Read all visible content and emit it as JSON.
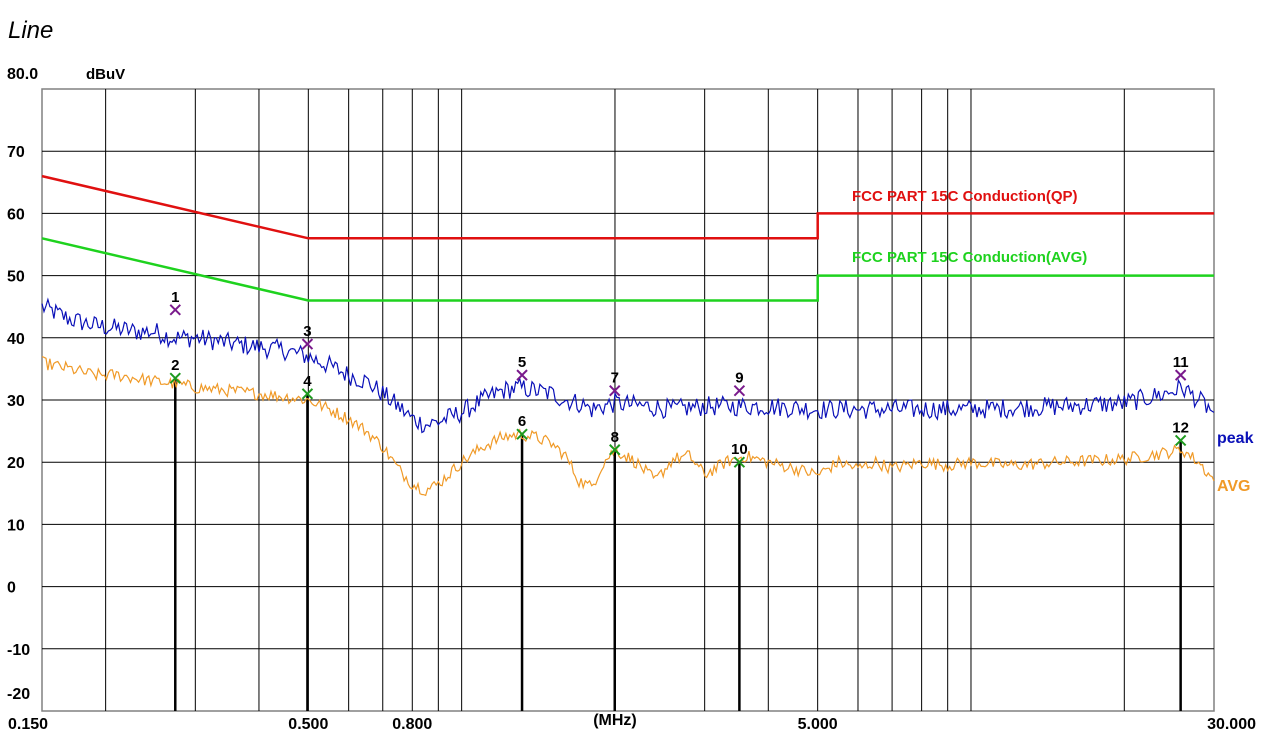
{
  "chart_data": {
    "type": "line",
    "title": "Line",
    "ylabel": "dBuV",
    "xlabel": "(MHz)",
    "x_scale": "log",
    "xlim": [
      0.15,
      30
    ],
    "ylim": [
      -20,
      80
    ],
    "grid": true,
    "y_ticks": [
      {
        "value": 80,
        "label": "80.0"
      },
      {
        "value": 70,
        "label": "70"
      },
      {
        "value": 60,
        "label": "60"
      },
      {
        "value": 50,
        "label": "50"
      },
      {
        "value": 40,
        "label": "40"
      },
      {
        "value": 30,
        "label": "30"
      },
      {
        "value": 20,
        "label": "20"
      },
      {
        "value": 10,
        "label": "10"
      },
      {
        "value": 0,
        "label": "0"
      },
      {
        "value": -10,
        "label": "-10"
      },
      {
        "value": -20,
        "label": "-20"
      }
    ],
    "x_ticks": [
      {
        "value": 0.15,
        "label": "0.150"
      },
      {
        "value": 0.5,
        "label": "0.500"
      },
      {
        "value": 0.8,
        "label": "0.800"
      },
      {
        "value": 2.0,
        "label": "(MHz)"
      },
      {
        "value": 5.0,
        "label": "5.000"
      },
      {
        "value": 30,
        "label": "30.000"
      }
    ],
    "x_gridlines": [
      0.2,
      0.3,
      0.4,
      0.5,
      0.6,
      0.7,
      0.8,
      0.9,
      1,
      2,
      3,
      4,
      5,
      6,
      7,
      8,
      9,
      10,
      20,
      30
    ],
    "limits": [
      {
        "name": "FCC PART 15C  Conduction(QP)",
        "color": "#e01010",
        "points": [
          [
            0.15,
            66
          ],
          [
            0.5,
            56
          ],
          [
            5,
            56
          ],
          [
            5,
            60
          ],
          [
            30,
            60
          ]
        ]
      },
      {
        "name": "FCC PART 15C Conduction(AVG)",
        "color": "#1ed21e",
        "points": [
          [
            0.15,
            56
          ],
          [
            0.5,
            46
          ],
          [
            5,
            46
          ],
          [
            5,
            50
          ],
          [
            30,
            50
          ]
        ]
      }
    ],
    "series": [
      {
        "name": "peak",
        "color": "#0a10b8",
        "points": [
          [
            0.15,
            45
          ],
          [
            0.17,
            43
          ],
          [
            0.19,
            42
          ],
          [
            0.21,
            41.5
          ],
          [
            0.23,
            41
          ],
          [
            0.25,
            41
          ],
          [
            0.27,
            40
          ],
          [
            0.3,
            40
          ],
          [
            0.33,
            39.5
          ],
          [
            0.36,
            39
          ],
          [
            0.4,
            38.5
          ],
          [
            0.45,
            38
          ],
          [
            0.5,
            37
          ],
          [
            0.55,
            35.5
          ],
          [
            0.6,
            34
          ],
          [
            0.65,
            33
          ],
          [
            0.7,
            31
          ],
          [
            0.75,
            29
          ],
          [
            0.8,
            27
          ],
          [
            0.85,
            26
          ],
          [
            0.9,
            26.5
          ],
          [
            1.0,
            28
          ],
          [
            1.1,
            30
          ],
          [
            1.2,
            31.5
          ],
          [
            1.3,
            32
          ],
          [
            1.4,
            31.5
          ],
          [
            1.5,
            31
          ],
          [
            1.6,
            30
          ],
          [
            1.7,
            29.5
          ],
          [
            1.8,
            28.5
          ],
          [
            2.0,
            29.5
          ],
          [
            2.3,
            29
          ],
          [
            2.6,
            28.5
          ],
          [
            3.0,
            29
          ],
          [
            3.5,
            29
          ],
          [
            4.0,
            29
          ],
          [
            5.0,
            28.5
          ],
          [
            6.0,
            28.5
          ],
          [
            8.0,
            28.5
          ],
          [
            10,
            28.5
          ],
          [
            15,
            29
          ],
          [
            20,
            29.5
          ],
          [
            24,
            31
          ],
          [
            26,
            32
          ],
          [
            28,
            30
          ],
          [
            30,
            28
          ]
        ]
      },
      {
        "name": "AVG",
        "color": "#f09a28",
        "points": [
          [
            0.15,
            36
          ],
          [
            0.17,
            35
          ],
          [
            0.19,
            34
          ],
          [
            0.21,
            34
          ],
          [
            0.23,
            33.5
          ],
          [
            0.25,
            33
          ],
          [
            0.28,
            32.5
          ],
          [
            0.3,
            32
          ],
          [
            0.35,
            31.5
          ],
          [
            0.4,
            31
          ],
          [
            0.45,
            30.5
          ],
          [
            0.5,
            30
          ],
          [
            0.55,
            28.5
          ],
          [
            0.6,
            27
          ],
          [
            0.65,
            25
          ],
          [
            0.7,
            22.5
          ],
          [
            0.75,
            19
          ],
          [
            0.8,
            16.5
          ],
          [
            0.85,
            15.5
          ],
          [
            0.9,
            16.5
          ],
          [
            1.0,
            20
          ],
          [
            1.1,
            22.5
          ],
          [
            1.2,
            24
          ],
          [
            1.3,
            24.5
          ],
          [
            1.4,
            24
          ],
          [
            1.5,
            23
          ],
          [
            1.6,
            21
          ],
          [
            1.7,
            17
          ],
          [
            1.8,
            16
          ],
          [
            1.9,
            20
          ],
          [
            2.0,
            22
          ],
          [
            2.2,
            20
          ],
          [
            2.4,
            17
          ],
          [
            2.6,
            20.5
          ],
          [
            2.8,
            21
          ],
          [
            3.0,
            18
          ],
          [
            3.3,
            20
          ],
          [
            3.6,
            21
          ],
          [
            4.0,
            20
          ],
          [
            4.5,
            19
          ],
          [
            5.0,
            18
          ],
          [
            5.5,
            20
          ],
          [
            6.0,
            19
          ],
          [
            6.5,
            20
          ],
          [
            7.0,
            19
          ],
          [
            8.0,
            20
          ],
          [
            9.0,
            19.5
          ],
          [
            10,
            20
          ],
          [
            12,
            19.5
          ],
          [
            15,
            20
          ],
          [
            20,
            20.5
          ],
          [
            24,
            21.5
          ],
          [
            26,
            22
          ],
          [
            28,
            20
          ],
          [
            30,
            17
          ]
        ]
      }
    ],
    "markers": [
      {
        "label": "1",
        "x": 0.274,
        "y": 44.5,
        "color": "#7a1a8c"
      },
      {
        "label": "2",
        "x": 0.274,
        "y": 33.5,
        "color": "#1e9a1e"
      },
      {
        "label": "3",
        "x": 0.498,
        "y": 39.0,
        "color": "#7a1a8c"
      },
      {
        "label": "4",
        "x": 0.498,
        "y": 31.0,
        "color": "#1e9a1e"
      },
      {
        "label": "5",
        "x": 1.314,
        "y": 34.0,
        "color": "#7a1a8c"
      },
      {
        "label": "6",
        "x": 1.314,
        "y": 24.5,
        "color": "#1e9a1e"
      },
      {
        "label": "7",
        "x": 1.998,
        "y": 31.5,
        "color": "#7a1a8c"
      },
      {
        "label": "8",
        "x": 1.998,
        "y": 22.0,
        "color": "#1e9a1e"
      },
      {
        "label": "9",
        "x": 3.51,
        "y": 31.5,
        "color": "#7a1a8c"
      },
      {
        "label": "10",
        "x": 3.51,
        "y": 20.0,
        "color": "#1e9a1e"
      },
      {
        "label": "11",
        "x": 25.8,
        "y": 34.0,
        "color": "#7a1a8c"
      },
      {
        "label": "12",
        "x": 25.8,
        "y": 23.5,
        "color": "#1e9a1e"
      }
    ]
  }
}
